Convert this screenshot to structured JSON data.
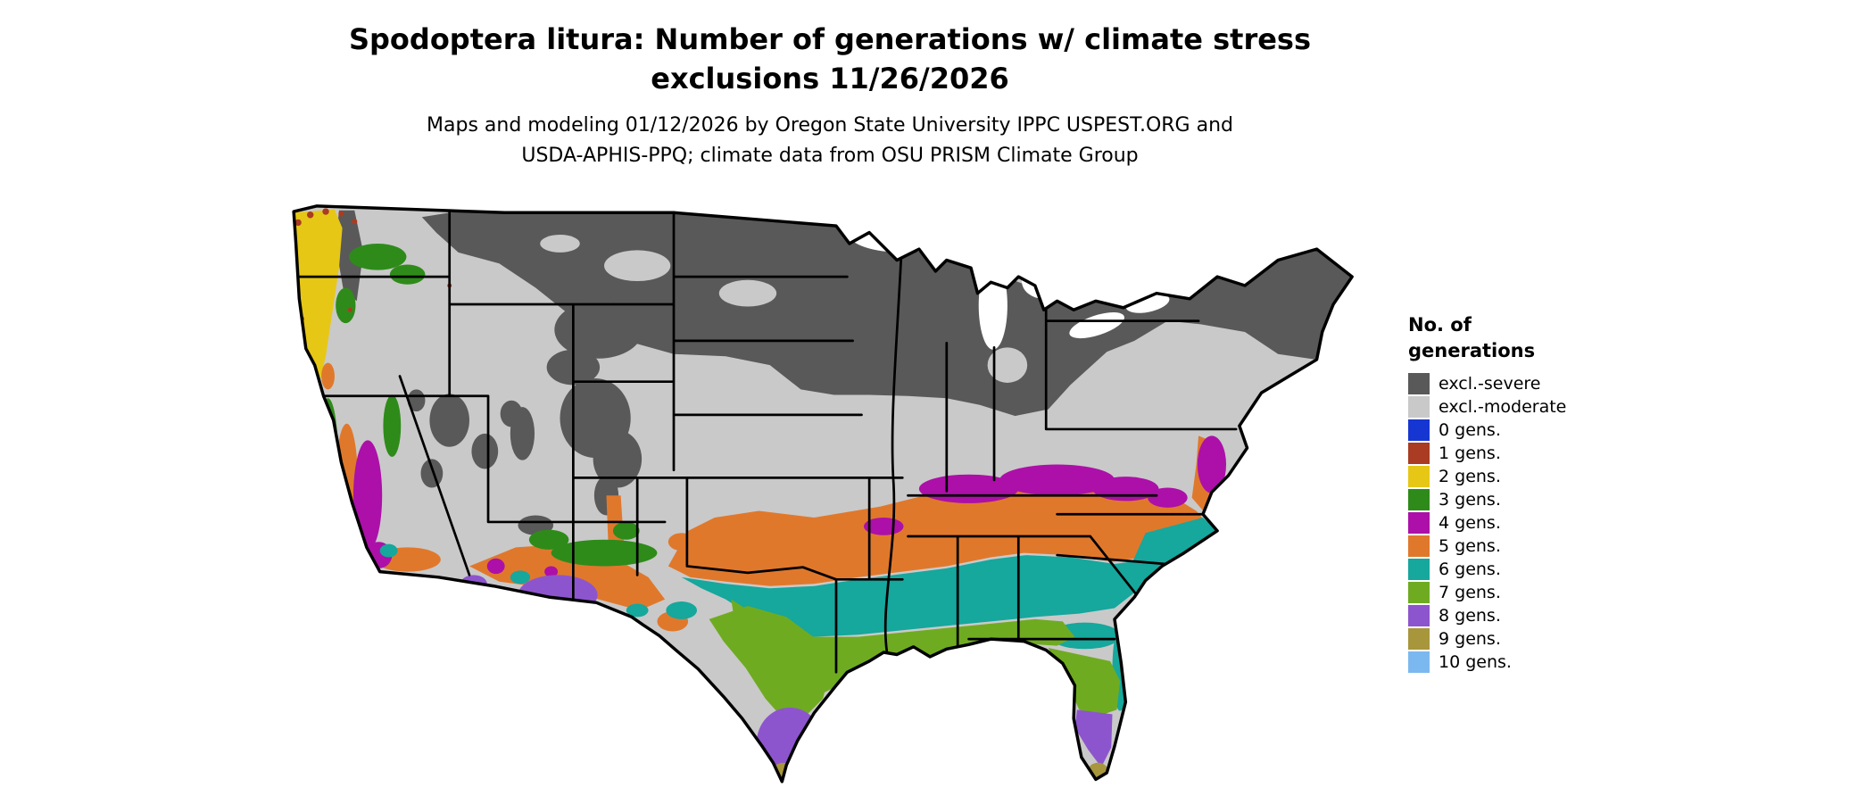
{
  "title": {
    "line1": "Spodoptera litura: Number of generations w/ climate stress",
    "line2": "exclusions 11/26/2026"
  },
  "subtitle": {
    "line1": "Maps and modeling 01/12/2026 by Oregon State University IPPC USPEST.ORG and",
    "line2": "USDA-APHIS-PPQ; climate data from OSU PRISM Climate Group"
  },
  "legend": {
    "title": {
      "line1": "No. of",
      "line2": "generations"
    },
    "items": [
      {
        "label": "excl.-severe",
        "color": "#595959"
      },
      {
        "label": "excl.-moderate",
        "color": "#c9c9c9"
      },
      {
        "label": "0 gens.",
        "color": "#1636d2"
      },
      {
        "label": "1 gens.",
        "color": "#a93c22"
      },
      {
        "label": "2 gens.",
        "color": "#e6c716"
      },
      {
        "label": "3 gens.",
        "color": "#2e8b1a"
      },
      {
        "label": "4 gens.",
        "color": "#ac10a8"
      },
      {
        "label": "5 gens.",
        "color": "#e0782c"
      },
      {
        "label": "6 gens.",
        "color": "#16a79d"
      },
      {
        "label": "7 gens.",
        "color": "#6fab21"
      },
      {
        "label": "8 gens.",
        "color": "#8d55cd"
      },
      {
        "label": "9 gens.",
        "color": "#a8963c"
      },
      {
        "label": "10 gens.",
        "color": "#7cb8f0"
      }
    ]
  }
}
